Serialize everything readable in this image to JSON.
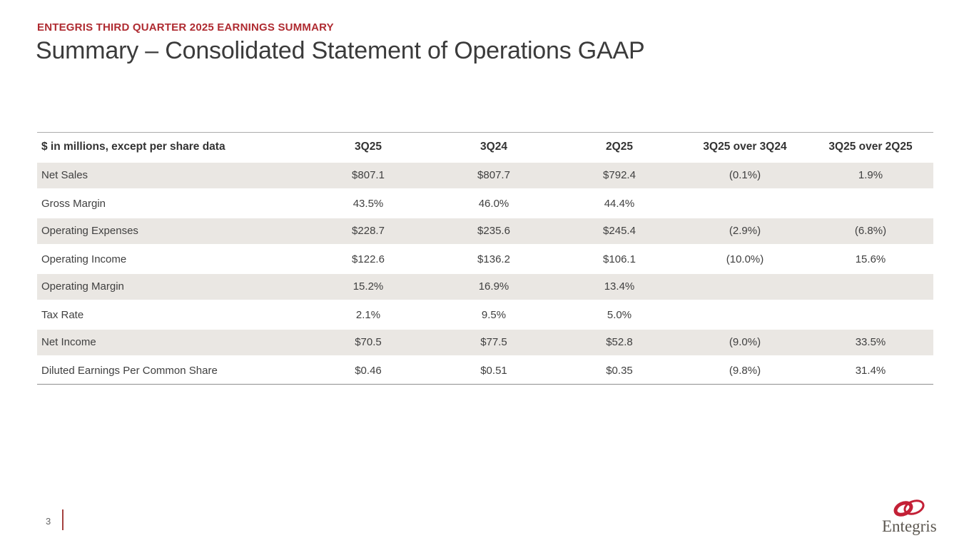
{
  "header": {
    "eyebrow": "ENTEGRIS THIRD QUARTER 2025 EARNINGS SUMMARY",
    "title": "Summary – Consolidated Statement of Operations GAAP"
  },
  "table": {
    "columns": [
      "$ in millions, except per share data",
      "3Q25",
      "3Q24",
      "2Q25",
      "3Q25 over 3Q24",
      "3Q25 over 2Q25"
    ],
    "rows": [
      {
        "label": "Net Sales",
        "values": [
          "$807.1",
          "$807.7",
          "$792.4",
          "(0.1%)",
          "1.9%"
        ],
        "shaded": true
      },
      {
        "label": "Gross Margin",
        "values": [
          "43.5%",
          "46.0%",
          "44.4%",
          "",
          ""
        ],
        "shaded": false
      },
      {
        "label": "Operating Expenses",
        "values": [
          "$228.7",
          "$235.6",
          "$245.4",
          "(2.9%)",
          "(6.8%)"
        ],
        "shaded": true
      },
      {
        "label": "Operating Income",
        "values": [
          "$122.6",
          "$136.2",
          "$106.1",
          "(10.0%)",
          "15.6%"
        ],
        "shaded": false
      },
      {
        "label": "Operating Margin",
        "values": [
          "15.2%",
          "16.9%",
          "13.4%",
          "",
          ""
        ],
        "shaded": true
      },
      {
        "label": "Tax Rate",
        "values": [
          "2.1%",
          "9.5%",
          "5.0%",
          "",
          ""
        ],
        "shaded": false
      },
      {
        "label": "Net Income",
        "values": [
          "$70.5",
          "$77.5",
          "$52.8",
          "(9.0%)",
          "33.5%"
        ],
        "shaded": true
      },
      {
        "label": "Diluted Earnings Per Common Share",
        "values": [
          "$0.46",
          "$0.51",
          "$0.35",
          "(9.8%)",
          "31.4%"
        ],
        "shaded": false
      }
    ]
  },
  "footer": {
    "page_number": "3",
    "logo_text": "Entegris"
  },
  "colors": {
    "accent_red": "#AF2B31",
    "title_gray": "#3B3B3B",
    "row_shade": "#EAE7E3",
    "footer_bar_red": "#A4413F",
    "logo_red": "#C32036",
    "logo_text_gray": "#5B564F"
  }
}
